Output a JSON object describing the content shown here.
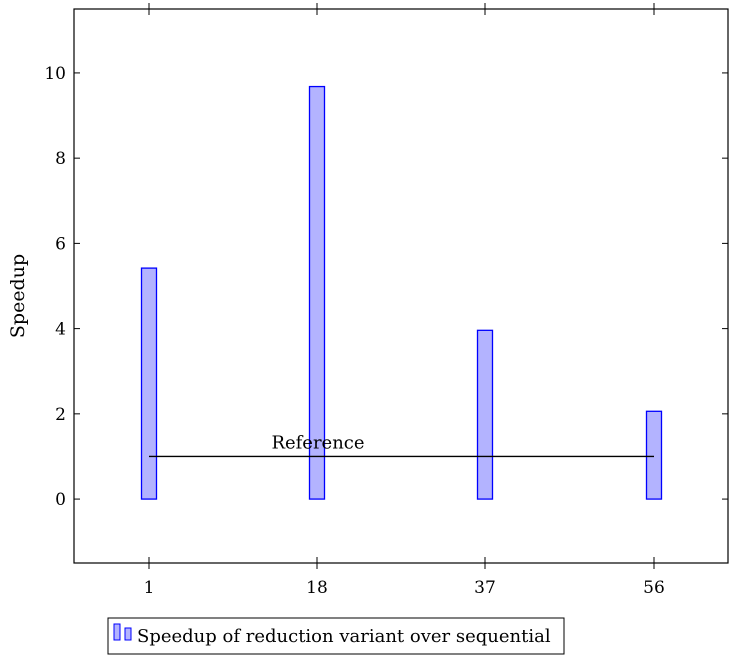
{
  "chart_data": {
    "type": "bar",
    "categories": [
      "1",
      "18",
      "37",
      "56"
    ],
    "series": [
      {
        "name": "Speedup of reduction variant over sequential",
        "values": [
          5.42,
          9.68,
          3.96,
          2.06
        ]
      }
    ],
    "ylabel": "Speedup",
    "xlabel": "",
    "ylim": [
      -1.5,
      11.5
    ],
    "yticks": [
      0,
      2,
      4,
      6,
      8,
      10
    ],
    "reference": {
      "label": "Reference",
      "value": 1
    },
    "legend_position": "bottom-left",
    "grid": false,
    "colors": {
      "bar_fill": "#b3b3ff",
      "bar_stroke": "#0000ff",
      "line": "#000000"
    }
  }
}
